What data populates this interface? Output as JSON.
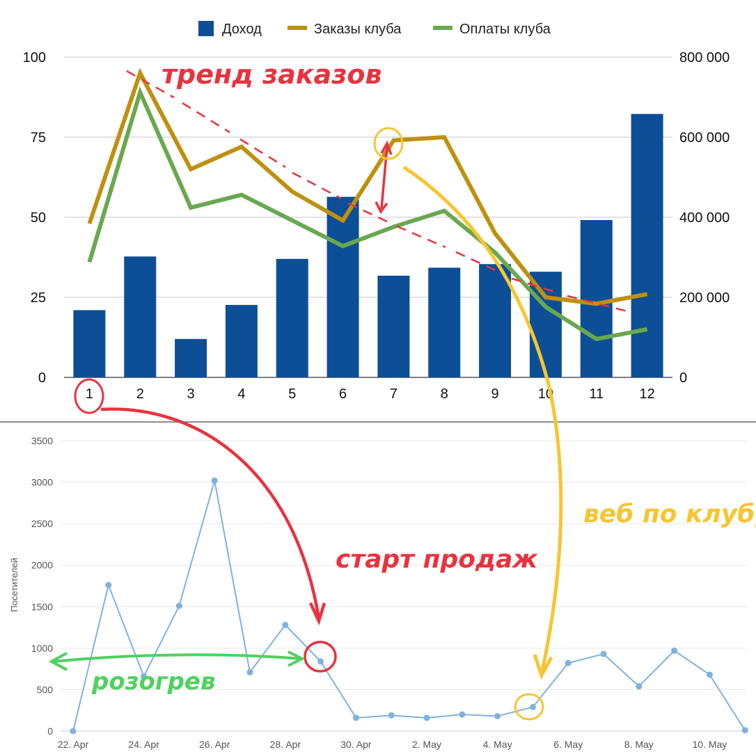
{
  "chart_data": [
    {
      "type": "bar",
      "combo_with": "line",
      "title": "",
      "legend": {
        "placement": "top",
        "entries": [
          {
            "name": "Доход",
            "color": "#0d4f96"
          },
          {
            "name": "Заказы клуба",
            "color": "#bf9010"
          },
          {
            "name": "Оплаты клуба",
            "color": "#6aa84f"
          }
        ]
      },
      "categories": [
        "1",
        "2",
        "3",
        "4",
        "5",
        "6",
        "7",
        "8",
        "9",
        "10",
        "11",
        "12"
      ],
      "y_left": {
        "range": [
          0,
          100
        ],
        "ticks": [
          "0",
          "25",
          "50",
          "75",
          "100"
        ]
      },
      "y_right": {
        "range": [
          0,
          800000
        ],
        "ticks": [
          "0",
          "200 000",
          "400 000",
          "600 000",
          "800 000"
        ]
      },
      "grid": true,
      "series": [
        {
          "name": "Доход",
          "type": "bar",
          "axis": "right",
          "values": [
            168000,
            302000,
            96000,
            181000,
            296000,
            451000,
            254000,
            274000,
            283000,
            264000,
            393000,
            658000
          ]
        },
        {
          "name": "Заказы клуба",
          "type": "line",
          "axis": "left",
          "values": [
            48,
            95,
            65,
            72,
            58,
            49,
            74,
            75,
            45,
            25,
            23,
            26
          ]
        },
        {
          "name": "Оплаты клуба",
          "type": "line",
          "axis": "left",
          "values": [
            36,
            89,
            53,
            57,
            49,
            41,
            47,
            52,
            39,
            22,
            12,
            15
          ]
        }
      ]
    },
    {
      "type": "line",
      "title": "",
      "ylabel": "Посетителей",
      "ylim": [
        0,
        3500
      ],
      "y_ticks": [
        "0",
        "500",
        "1000",
        "1500",
        "2000",
        "2500",
        "3000",
        "3500"
      ],
      "x_ticks": [
        "22. Apr",
        "24. Apr",
        "26. Apr",
        "28. Apr",
        "30. Apr",
        "2. May",
        "4. May",
        "6. May",
        "8. May",
        "10. May"
      ],
      "grid": true,
      "series": [
        {
          "name": "",
          "color": "#7fb2dc",
          "x": [
            "22. Apr",
            "23. Apr",
            "24. Apr",
            "25. Apr",
            "26. Apr",
            "27. Apr",
            "28. Apr",
            "29. Apr",
            "30. Apr",
            "1. May",
            "2. May",
            "3. May",
            "4. May",
            "5. May",
            "6. May",
            "7. May",
            "8. May",
            "9. May",
            "10. May",
            "11. May"
          ],
          "values": [
            0,
            1760,
            660,
            1510,
            3020,
            710,
            1280,
            840,
            160,
            190,
            160,
            200,
            180,
            290,
            820,
            930,
            540,
            970,
            680,
            10
          ]
        }
      ]
    }
  ],
  "annotations": {
    "trend_label": "тренд заказов",
    "sales_start_label": "старт продаж",
    "club_web_label": "веб по клубу",
    "warmup_label": "розогрев",
    "colors": {
      "red": "#e8333f",
      "yellow": "#f7c531",
      "green": "#4fd160"
    }
  }
}
